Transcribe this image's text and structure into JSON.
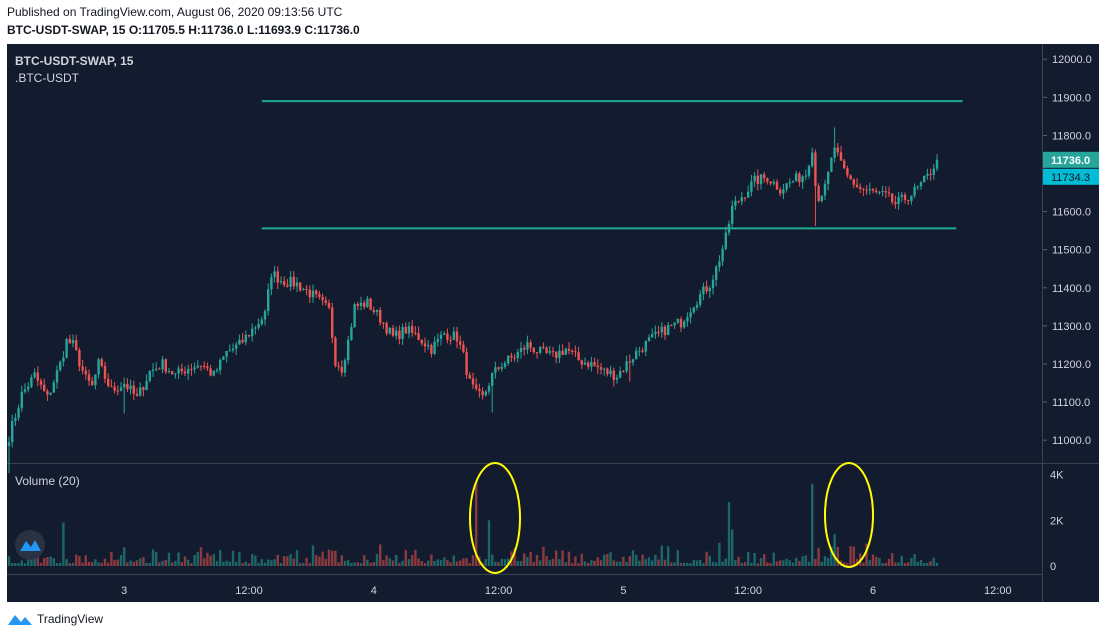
{
  "header": {
    "published": "Published on TradingView.com, August 06, 2020 09:13:56 UTC",
    "symbol": "BTC-USDT-SWAP, 15",
    "o_label": "O:",
    "o": "11705.5",
    "h_label": "H:",
    "h": "11736.0",
    "l_label": "L:",
    "l": "11693.9",
    "c_label": "C:",
    "c": "11736.0"
  },
  "legend": {
    "symbol": "BTC-USDT-SWAP, 15",
    "sub": ".BTC-USDT"
  },
  "volume_label": "Volume (20)",
  "price_tags": {
    "last": "11736.0",
    "ref": "11734.3"
  },
  "footer": {
    "brand": "TradingView"
  },
  "colors": {
    "background": "#131b2e",
    "up": "#26a69a",
    "down": "#ef5350",
    "hline": "#22ab94",
    "annotation": "#ffff00",
    "tag_last": "#26a69a",
    "tag_ref": "#00bcd4"
  },
  "chart_data": {
    "type": "candlestick",
    "price_axis": {
      "ticks": [
        "12000.0",
        "11900.0",
        "11800.0",
        "11700.0",
        "11600.0",
        "11500.0",
        "11400.0",
        "11300.0",
        "11200.0",
        "11100.0",
        "11000.0"
      ],
      "range": [
        10940,
        12040
      ]
    },
    "volume_axis": {
      "ticks": [
        "4K",
        "2K",
        "0"
      ],
      "range": [
        0,
        4200
      ]
    },
    "time_axis": {
      "ticks": [
        "3",
        "12:00",
        "4",
        "12:00",
        "5",
        "12:00",
        "6",
        "12:00"
      ]
    },
    "horizontal_lines": [
      {
        "price": 11890,
        "from_index": 79,
        "to_index": 298
      },
      {
        "price": 11556,
        "from_index": 79,
        "to_index": 296
      }
    ],
    "annotations": [
      {
        "type": "ellipse",
        "target": "volume spike near 12:00 (day 4)"
      },
      {
        "type": "ellipse",
        "target": "volume spike before 6"
      }
    ],
    "anchors": [
      [
        0,
        11010
      ],
      [
        4,
        11120
      ],
      [
        8,
        11170
      ],
      [
        12,
        11110
      ],
      [
        16,
        11200
      ],
      [
        18,
        11260
      ],
      [
        20,
        11250
      ],
      [
        24,
        11160
      ],
      [
        26,
        11140
      ],
      [
        28,
        11200
      ],
      [
        32,
        11130
      ],
      [
        36,
        11150
      ],
      [
        40,
        11110
      ],
      [
        44,
        11180
      ],
      [
        48,
        11200
      ],
      [
        52,
        11170
      ],
      [
        56,
        11190
      ],
      [
        60,
        11200
      ],
      [
        64,
        11170
      ],
      [
        68,
        11230
      ],
      [
        72,
        11250
      ],
      [
        76,
        11290
      ],
      [
        80,
        11330
      ],
      [
        82,
        11440
      ],
      [
        85,
        11420
      ],
      [
        90,
        11410
      ],
      [
        95,
        11380
      ],
      [
        100,
        11340
      ],
      [
        102,
        11210
      ],
      [
        104,
        11190
      ],
      [
        106,
        11260
      ],
      [
        108,
        11350
      ],
      [
        112,
        11360
      ],
      [
        116,
        11320
      ],
      [
        120,
        11270
      ],
      [
        124,
        11290
      ],
      [
        128,
        11270
      ],
      [
        132,
        11240
      ],
      [
        136,
        11280
      ],
      [
        140,
        11270
      ],
      [
        142,
        11220
      ],
      [
        144,
        11150
      ],
      [
        146,
        11120
      ],
      [
        148,
        11110
      ],
      [
        151,
        11170
      ],
      [
        154,
        11200
      ],
      [
        158,
        11220
      ],
      [
        162,
        11250
      ],
      [
        166,
        11230
      ],
      [
        170,
        11220
      ],
      [
        174,
        11240
      ],
      [
        178,
        11210
      ],
      [
        182,
        11200
      ],
      [
        186,
        11180
      ],
      [
        190,
        11170
      ],
      [
        192,
        11190
      ],
      [
        196,
        11230
      ],
      [
        200,
        11260
      ],
      [
        205,
        11290
      ],
      [
        210,
        11310
      ],
      [
        214,
        11360
      ],
      [
        216,
        11380
      ],
      [
        219,
        11410
      ],
      [
        221,
        11450
      ],
      [
        224,
        11530
      ],
      [
        226,
        11610
      ],
      [
        230,
        11650
      ],
      [
        233,
        11680
      ],
      [
        237,
        11690
      ],
      [
        241,
        11660
      ],
      [
        245,
        11680
      ],
      [
        249,
        11700
      ],
      [
        251,
        11770
      ],
      [
        252,
        11670
      ],
      [
        253,
        11640
      ],
      [
        255,
        11660
      ],
      [
        258,
        11770
      ],
      [
        260,
        11720
      ],
      [
        262,
        11690
      ],
      [
        266,
        11660
      ],
      [
        270,
        11650
      ],
      [
        274,
        11640
      ],
      [
        277,
        11620
      ],
      [
        281,
        11640
      ],
      [
        284,
        11660
      ],
      [
        287,
        11690
      ],
      [
        290,
        11736
      ]
    ],
    "volume_spikes": [
      {
        "index": 17,
        "value": 1900
      },
      {
        "index": 146,
        "value": 3700
      },
      {
        "index": 150,
        "value": 2000
      },
      {
        "index": 225,
        "value": 2800
      },
      {
        "index": 226,
        "value": 1600
      },
      {
        "index": 251,
        "value": 3600
      },
      {
        "index": 258,
        "value": 1400
      }
    ]
  }
}
